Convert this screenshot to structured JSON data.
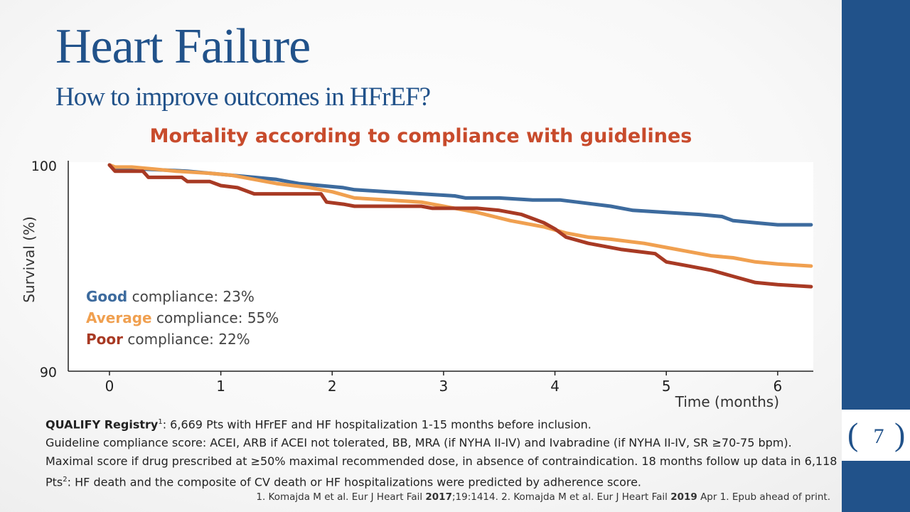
{
  "slide": {
    "title": "Heart Failure",
    "subtitle": "How to improve outcomes in HFrEF?",
    "page_number": "7",
    "brace_open": "(",
    "brace_close": ")"
  },
  "legend": [
    {
      "label": "Good",
      "text": " compliance: 23%",
      "color": "#3d6b9e"
    },
    {
      "label": "Average",
      "text": " compliance: 55%",
      "color": "#f0a050"
    },
    {
      "label": "Poor",
      "text": " compliance: 22%",
      "color": "#a83a24"
    }
  ],
  "notes": {
    "registry_name": "QUALIFY Registry",
    "registry_sup": "1",
    "registry_text": ": 6,669 Pts with HFrEF and HF hospitalization 1-15 months before inclusion.",
    "score_text_a": "Guideline compliance score: ACEI, ARB if ACEI not tolerated, BB, MRA (if NYHA II-IV) and Ivabradine (if NYHA II-IV, SR ≥70-75 bpm). Maximal score if drug prescribed at ≥50% maximal recommended dose, in absence of contraindication. 18 months follow up data in 6,118 Pts",
    "score_sup": "2",
    "score_text_b": ": HF death and the composite of CV death or HF hospitalizations were predicted by adherence score."
  },
  "references": {
    "ref1_pre": "1. Komajda M et al. Eur J Heart Fail ",
    "ref1_year": "2017",
    "ref1_post": ";19:1414. 2. Komajda M et al. Eur J Heart Fail ",
    "ref2_year": "2019",
    "ref2_post": " Apr 1. Epub ahead of print."
  },
  "chart_data": {
    "type": "line",
    "title": "Mortality according to compliance with guidelines",
    "xlabel": "Time (months)",
    "ylabel": "Survival (%)",
    "xlim": [
      -0.37,
      6.32
    ],
    "ylim": [
      90,
      100
    ],
    "xticks": [
      0,
      1,
      2,
      3,
      4,
      5,
      6
    ],
    "yticks": [
      90,
      100
    ],
    "grid": false,
    "series": [
      {
        "name": "Good",
        "color": "#3d6b9e",
        "x": [
          0,
          0.05,
          0.3,
          0.7,
          0.9,
          1.1,
          1.3,
          1.5,
          1.7,
          1.9,
          2.1,
          2.2,
          2.5,
          2.8,
          3.1,
          3.2,
          3.5,
          3.8,
          4.05,
          4.2,
          4.5,
          4.7,
          5.0,
          5.3,
          5.5,
          5.6,
          5.8,
          6.0,
          6.3
        ],
        "y": [
          100,
          99.8,
          99.8,
          99.7,
          99.6,
          99.5,
          99.4,
          99.3,
          99.1,
          99.0,
          98.9,
          98.8,
          98.7,
          98.6,
          98.5,
          98.4,
          98.4,
          98.3,
          98.3,
          98.2,
          98.0,
          97.8,
          97.7,
          97.6,
          97.5,
          97.3,
          97.2,
          97.1,
          97.1
        ]
      },
      {
        "name": "Average",
        "color": "#f0a050",
        "x": [
          0,
          0.05,
          0.2,
          0.4,
          0.6,
          0.9,
          1.1,
          1.3,
          1.5,
          1.8,
          2.0,
          2.2,
          2.5,
          2.8,
          3.0,
          3.3,
          3.6,
          3.9,
          4.1,
          4.3,
          4.5,
          4.8,
          5.0,
          5.2,
          5.4,
          5.6,
          5.8,
          6.0,
          6.3
        ],
        "y": [
          100,
          99.9,
          99.9,
          99.8,
          99.7,
          99.6,
          99.5,
          99.3,
          99.1,
          98.9,
          98.7,
          98.4,
          98.3,
          98.2,
          98.0,
          97.7,
          97.3,
          97.0,
          96.7,
          96.5,
          96.4,
          96.2,
          96.0,
          95.8,
          95.6,
          95.5,
          95.3,
          95.2,
          95.1
        ]
      },
      {
        "name": "Poor",
        "color": "#a83a24",
        "x": [
          0,
          0.05,
          0.3,
          0.35,
          0.65,
          0.7,
          0.9,
          1.0,
          1.15,
          1.3,
          1.9,
          1.95,
          2.1,
          2.2,
          2.8,
          2.9,
          3.3,
          3.5,
          3.7,
          3.8,
          3.9,
          4.0,
          4.1,
          4.3,
          4.6,
          4.9,
          5.0,
          5.2,
          5.4,
          5.6,
          5.8,
          6.0,
          6.3
        ],
        "y": [
          100,
          99.7,
          99.7,
          99.4,
          99.4,
          99.2,
          99.2,
          99.0,
          98.9,
          98.6,
          98.6,
          98.2,
          98.1,
          98.0,
          98.0,
          97.9,
          97.9,
          97.8,
          97.6,
          97.4,
          97.2,
          96.9,
          96.5,
          96.2,
          95.9,
          95.7,
          95.3,
          95.1,
          94.9,
          94.6,
          94.3,
          94.2,
          94.1
        ]
      }
    ]
  }
}
